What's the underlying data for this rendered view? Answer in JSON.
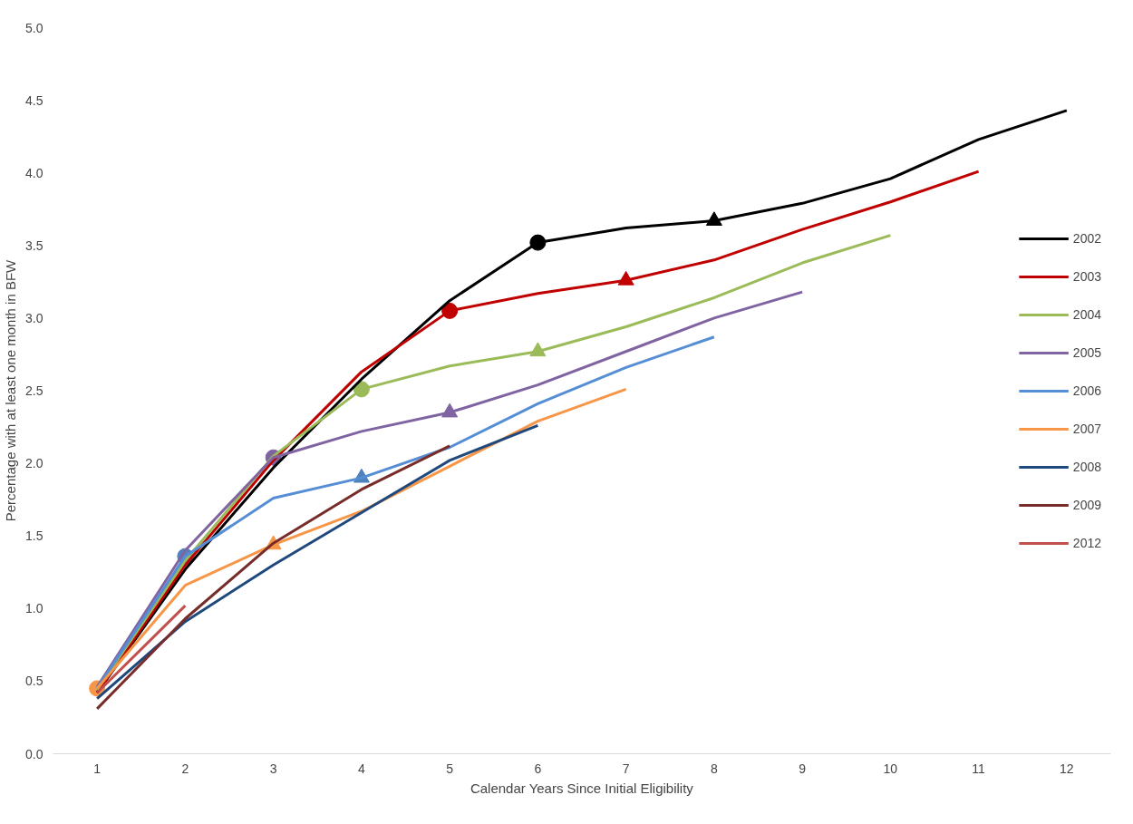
{
  "chart_data": {
    "type": "line",
    "xlabel": "Calendar Years Since Initial Eligibility",
    "ylabel": "Percentage with at least one month in BFW",
    "x": [
      1,
      2,
      3,
      4,
      5,
      6,
      7,
      8,
      9,
      10,
      11,
      12
    ],
    "xlim": [
      0.5,
      12.5
    ],
    "xticks": [
      1,
      2,
      3,
      4,
      5,
      6,
      7,
      8,
      9,
      10,
      11,
      12
    ],
    "ylim": [
      0,
      5
    ],
    "yticks": [
      {
        "value": 0,
        "label": "0.0"
      },
      {
        "value": 0.5,
        "label": "0.5"
      },
      {
        "value": 1,
        "label": "1.0"
      },
      {
        "value": 1.5,
        "label": "1.5"
      },
      {
        "value": 2,
        "label": "2.0"
      },
      {
        "value": 2.5,
        "label": "2.5"
      },
      {
        "value": 3,
        "label": "3.0"
      },
      {
        "value": 3.5,
        "label": "3.5"
      },
      {
        "value": 4,
        "label": "4.0"
      },
      {
        "value": 4.5,
        "label": "4.5"
      },
      {
        "value": 5,
        "label": "5.0"
      }
    ],
    "grid": false,
    "legend": "right",
    "marker": "none",
    "line_style": "solid",
    "series": [
      {
        "name": "2002",
        "color": "#000000",
        "values": [
          0.42,
          1.27,
          1.97,
          2.58,
          3.12,
          3.52,
          3.62,
          3.67,
          3.79,
          3.96,
          4.23,
          4.43
        ]
      },
      {
        "name": "2003",
        "color": "#c00000",
        "values": [
          0.42,
          1.3,
          2.02,
          2.63,
          3.05,
          3.17,
          3.26,
          3.4,
          3.61,
          3.8,
          4.01,
          null
        ]
      },
      {
        "name": "2004",
        "color": "#9bbb59",
        "values": [
          0.44,
          1.33,
          2.05,
          2.51,
          2.67,
          2.77,
          2.94,
          3.14,
          3.38,
          3.57,
          null,
          null
        ]
      },
      {
        "name": "2005",
        "color": "#8064a2",
        "values": [
          0.46,
          1.4,
          2.04,
          2.22,
          2.35,
          2.54,
          2.77,
          3.0,
          3.18,
          null,
          null,
          null
        ]
      },
      {
        "name": "2006",
        "color": "#558ed5",
        "values": [
          0.45,
          1.36,
          1.76,
          1.9,
          2.11,
          2.41,
          2.66,
          2.87,
          null,
          null,
          null,
          null
        ]
      },
      {
        "name": "2007",
        "color": "#f79646",
        "values": [
          0.45,
          1.16,
          1.44,
          1.67,
          1.98,
          2.29,
          2.51,
          null,
          null,
          null,
          null,
          null
        ]
      },
      {
        "name": "2008",
        "color": "#1f497d",
        "values": [
          0.38,
          0.91,
          1.3,
          1.66,
          2.02,
          2.26,
          null,
          null,
          null,
          null,
          null,
          null
        ]
      },
      {
        "name": "2009",
        "color": "#772c2a",
        "values": [
          0.31,
          0.93,
          1.45,
          1.82,
          2.12,
          null,
          null,
          null,
          null,
          null,
          null,
          null
        ]
      },
      {
        "name": "2012",
        "color": "#c0504d",
        "values": [
          0.42,
          1.02,
          null,
          null,
          null,
          null,
          null,
          null,
          null,
          null,
          null,
          null
        ]
      },
      {
        "type": "scatter",
        "marker": "circle",
        "color": "#000000",
        "x": [
          6
        ],
        "values": [
          3.52
        ]
      },
      {
        "type": "scatter",
        "marker": "triangle",
        "color": "#000000",
        "x": [
          8
        ],
        "values": [
          3.67
        ]
      },
      {
        "type": "scatter",
        "marker": "circle",
        "color": "#c00000",
        "x": [
          5
        ],
        "values": [
          3.05
        ]
      },
      {
        "type": "scatter",
        "marker": "triangle",
        "color": "#c00000",
        "x": [
          7
        ],
        "values": [
          3.26
        ]
      },
      {
        "type": "scatter",
        "marker": "circle",
        "color": "#9bbb59",
        "x": [
          4
        ],
        "values": [
          2.51
        ]
      },
      {
        "type": "scatter",
        "marker": "triangle",
        "color": "#9bbb59",
        "x": [
          6
        ],
        "values": [
          2.77
        ]
      },
      {
        "type": "scatter",
        "marker": "circle",
        "color": "#8064a2",
        "x": [
          3
        ],
        "values": [
          2.04
        ]
      },
      {
        "type": "scatter",
        "marker": "triangle",
        "color": "#8064a2",
        "x": [
          5
        ],
        "values": [
          2.35
        ]
      },
      {
        "type": "scatter",
        "marker": "circle",
        "color": "#4f81bd",
        "x": [
          2
        ],
        "values": [
          1.36
        ]
      },
      {
        "type": "scatter",
        "marker": "triangle",
        "color": "#4f81bd",
        "x": [
          4
        ],
        "values": [
          1.9
        ]
      },
      {
        "type": "scatter",
        "marker": "circle",
        "color": "#f79646",
        "x": [
          1
        ],
        "values": [
          0.45
        ]
      },
      {
        "type": "scatter",
        "marker": "triangle",
        "color": "#f79646",
        "x": [
          3
        ],
        "values": [
          1.44
        ]
      }
    ]
  }
}
